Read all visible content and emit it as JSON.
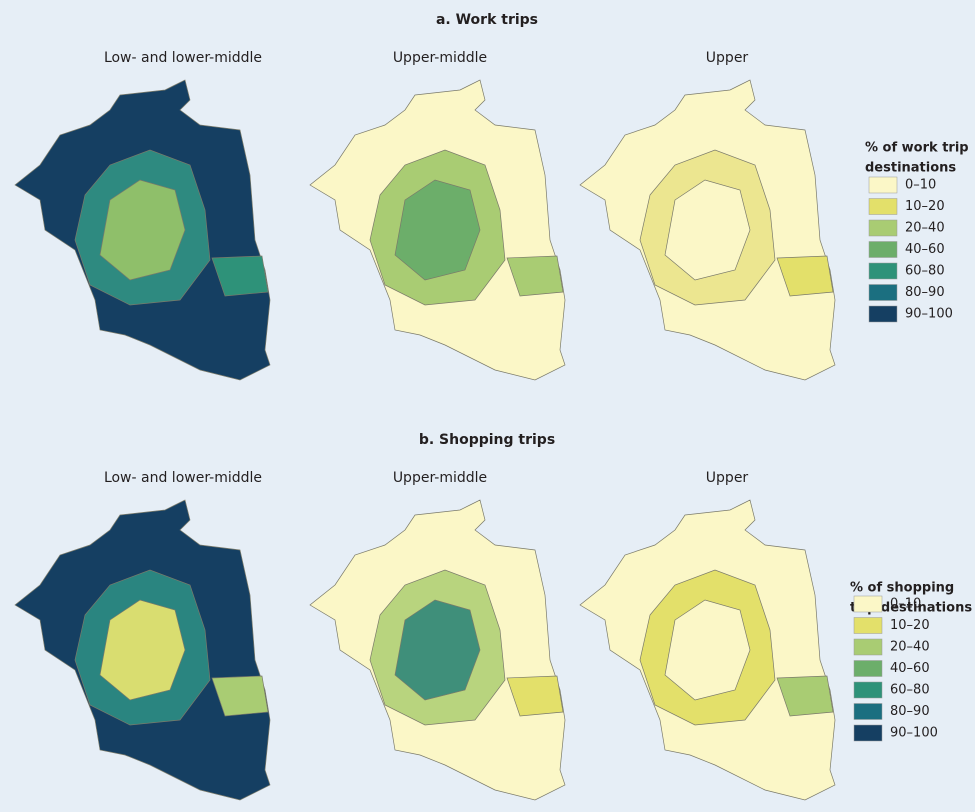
{
  "panels": [
    {
      "title": "a.  Work trips",
      "maps": [
        "Low- and lower-middle",
        "Upper-middle",
        "Upper"
      ],
      "legend": {
        "title": [
          "% of work trip",
          "destinations"
        ],
        "items": [
          {
            "label": "0–10",
            "color": "#fbf7c7"
          },
          {
            "label": "10–20",
            "color": "#e3e06a"
          },
          {
            "label": "20–40",
            "color": "#a9cc73"
          },
          {
            "label": "40–60",
            "color": "#6cae6a"
          },
          {
            "label": "60–80",
            "color": "#2e9279"
          },
          {
            "label": "80–90",
            "color": "#1b6f80"
          },
          {
            "label": "90–100",
            "color": "#153f62"
          }
        ]
      }
    },
    {
      "title": "b. Shopping trips",
      "maps": [
        "Low- and lower-middle",
        "Upper-middle",
        "Upper"
      ],
      "legend": {
        "title": [
          "% of shopping",
          "trip destinations"
        ],
        "items": [
          {
            "label": "0–10",
            "color": "#fbf7c7"
          },
          {
            "label": "10–20",
            "color": "#e3e06a"
          },
          {
            "label": "20–40",
            "color": "#a9cc73"
          },
          {
            "label": "40–60",
            "color": "#6cae6a"
          },
          {
            "label": "60–80",
            "color": "#2e9279"
          },
          {
            "label": "80–90",
            "color": "#1b6f80"
          },
          {
            "label": "90–100",
            "color": "#153f62"
          }
        ]
      }
    }
  ]
}
